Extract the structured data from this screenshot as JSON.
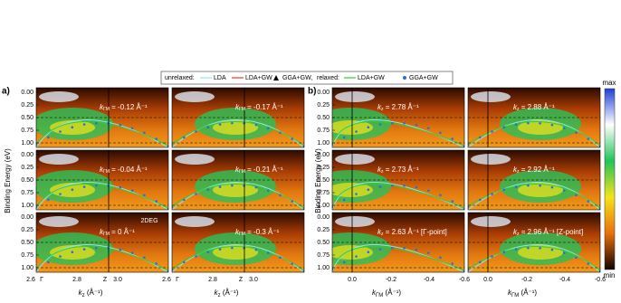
{
  "legend": {
    "unrelaxed": "unrelaxed:",
    "lda": "LDA",
    "lda_gw": "LDA+GW",
    "gga_gw": "GGA+GW,",
    "relaxed": "relaxed:",
    "relaxed_lda_gw": "LDA+GW",
    "relaxed_gga_gw": "GGA+GW"
  },
  "panel_a": {
    "label": "a)",
    "y_label": "Binding Energy (eV)",
    "x_label_symbol": "k",
    "x_label_sub": "z",
    "x_label_unit": " (Å⁻¹)",
    "y_ticks": [
      "0.00",
      "0.25",
      "0.50",
      "0.75",
      "1.00"
    ],
    "x_ticks": [
      "2.6",
      "Γ",
      "2.8",
      "Z",
      "3.0"
    ],
    "annotations": [
      {
        "symbol": "k",
        "sub": "ΓM",
        "text": " = -0.12 Å⁻¹"
      },
      {
        "symbol": "k",
        "sub": "ΓM",
        "text": " = -0.17 Å⁻¹"
      },
      {
        "symbol": "k",
        "sub": "ΓM",
        "text": " = -0.04 Å⁻¹"
      },
      {
        "symbol": "k",
        "sub": "ΓM",
        "text": " = -0.21 Å⁻¹"
      },
      {
        "symbol": "k",
        "sub": "ΓM",
        "text": " = 0 Å⁻¹"
      },
      {
        "symbol": "k",
        "sub": "ΓM",
        "text": " = -0.3 Å⁻¹"
      }
    ],
    "note": "2DEG"
  },
  "panel_b": {
    "label": "b)",
    "y_label": "Binding Energy (eV)",
    "x_label_symbol": "k",
    "x_label_sub": "ΓM",
    "x_label_unit": " (Å⁻¹)",
    "y_ticks": [
      "0.00",
      "0.25",
      "0.50",
      "0.75",
      "1.00"
    ],
    "x_ticks": [
      "0.0",
      "-0.2",
      "-0.4",
      "-0.6"
    ],
    "annotations": [
      {
        "symbol": "k",
        "sub": "z",
        "text": " = 2.78 Å⁻¹"
      },
      {
        "symbol": "k",
        "sub": "z",
        "text": " = 2.88 Å⁻¹"
      },
      {
        "symbol": "k",
        "sub": "z",
        "text": " = 2.73 Å⁻¹"
      },
      {
        "symbol": "k",
        "sub": "z",
        "text": " = 2.92 Å⁻¹"
      },
      {
        "symbol": "k",
        "sub": "z",
        "text": " = 2.63 Å⁻¹ [Γ-point]"
      },
      {
        "symbol": "k",
        "sub": "z",
        "text": " = 2.96 Å⁻¹ [Z-point]"
      }
    ]
  },
  "colorbar": {
    "max": "max",
    "min": "min"
  }
}
